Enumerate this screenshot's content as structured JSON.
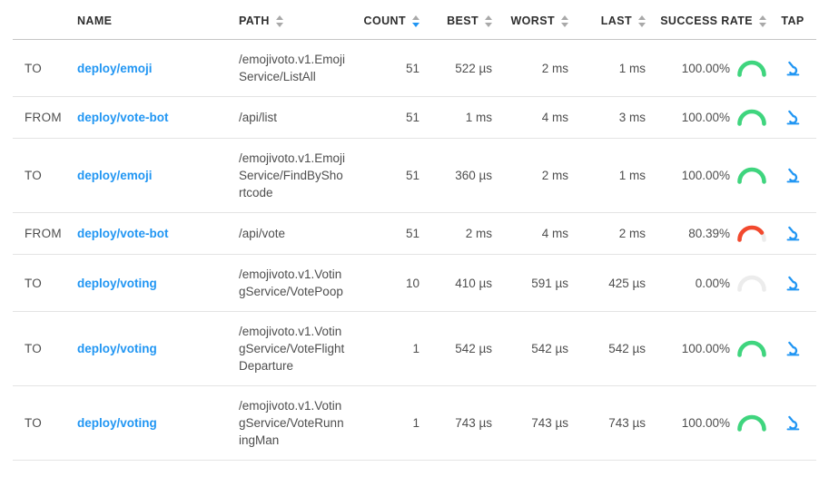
{
  "colors": {
    "accent": "#2196f3",
    "success": "#3fd57e",
    "failure": "#f2492e",
    "track": "#ececec"
  },
  "table": {
    "columns": [
      {
        "label": "",
        "sortable": false,
        "sort": null
      },
      {
        "label": "NAME",
        "sortable": false,
        "sort": null
      },
      {
        "label": "PATH",
        "sortable": true,
        "sort": null
      },
      {
        "label": "COUNT",
        "sortable": true,
        "sort": "desc"
      },
      {
        "label": "BEST",
        "sortable": true,
        "sort": null
      },
      {
        "label": "WORST",
        "sortable": true,
        "sort": null
      },
      {
        "label": "LAST",
        "sortable": true,
        "sort": null
      },
      {
        "label": "SUCCESS RATE",
        "sortable": true,
        "sort": null
      },
      {
        "label": "TAP",
        "sortable": false,
        "sort": null
      }
    ],
    "rows": [
      {
        "direction": "TO",
        "name": "deploy/emoji",
        "path": "/emojivoto.v1.EmojiService/ListAll",
        "count": "51",
        "best": "522 µs",
        "worst": "2 ms",
        "last": "1 ms",
        "success_rate": "100.00%",
        "success_pct": 100,
        "arc": "success"
      },
      {
        "direction": "FROM",
        "name": "deploy/vote-bot",
        "path": "/api/list",
        "count": "51",
        "best": "1 ms",
        "worst": "4 ms",
        "last": "3 ms",
        "success_rate": "100.00%",
        "success_pct": 100,
        "arc": "success"
      },
      {
        "direction": "TO",
        "name": "deploy/emoji",
        "path": "/emojivoto.v1.EmojiService/FindByShortcode",
        "count": "51",
        "best": "360 µs",
        "worst": "2 ms",
        "last": "1 ms",
        "success_rate": "100.00%",
        "success_pct": 100,
        "arc": "success"
      },
      {
        "direction": "FROM",
        "name": "deploy/vote-bot",
        "path": "/api/vote",
        "count": "51",
        "best": "2 ms",
        "worst": "4 ms",
        "last": "2 ms",
        "success_rate": "80.39%",
        "success_pct": 80.39,
        "arc": "failure"
      },
      {
        "direction": "TO",
        "name": "deploy/voting",
        "path": "/emojivoto.v1.VotingService/VotePoop",
        "count": "10",
        "best": "410 µs",
        "worst": "591 µs",
        "last": "425 µs",
        "success_rate": "0.00%",
        "success_pct": 0,
        "arc": "none"
      },
      {
        "direction": "TO",
        "name": "deploy/voting",
        "path": "/emojivoto.v1.VotingService/VoteFlightDeparture",
        "count": "1",
        "best": "542 µs",
        "worst": "542 µs",
        "last": "542 µs",
        "success_rate": "100.00%",
        "success_pct": 100,
        "arc": "success"
      },
      {
        "direction": "TO",
        "name": "deploy/voting",
        "path": "/emojivoto.v1.VotingService/VoteRunningMan",
        "count": "1",
        "best": "743 µs",
        "worst": "743 µs",
        "last": "743 µs",
        "success_rate": "100.00%",
        "success_pct": 100,
        "arc": "success"
      }
    ]
  }
}
